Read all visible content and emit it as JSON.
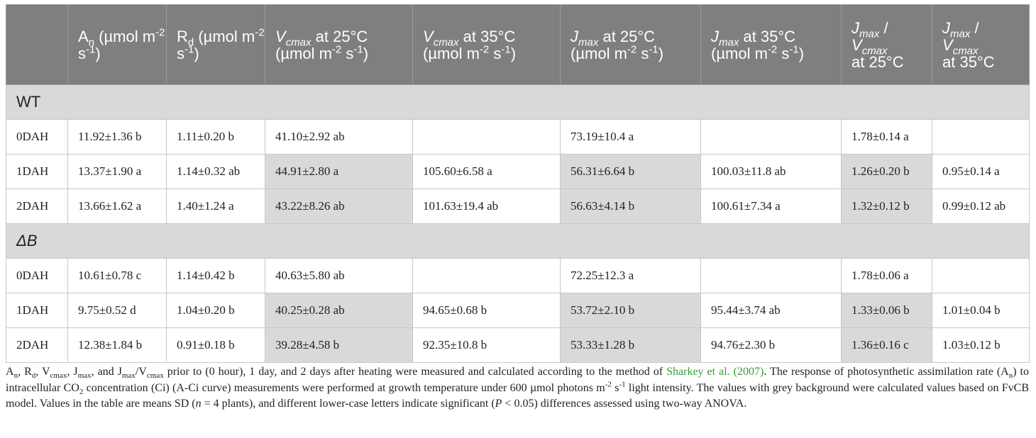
{
  "table": {
    "headers": [
      {
        "key": "group",
        "pre": "",
        "sub": "",
        "mid": "",
        "sup1": "",
        "mid2": "",
        "sup2": ""
      },
      {
        "key": "an",
        "pre": "A",
        "sub": "n",
        "mid": " (µmol m",
        "sup1": "-2",
        "mid2": " s",
        "sup2": "-1",
        "post": ")"
      },
      {
        "key": "rd",
        "pre": "R",
        "sub": "d",
        "mid": " (µmol m",
        "sup1": "-2",
        "mid2": " s",
        "sup2": "-1",
        "post": ")"
      },
      {
        "key": "vcmax25"
      },
      {
        "key": "vcmax35"
      },
      {
        "key": "jmax25"
      },
      {
        "key": "jmax35"
      },
      {
        "key": "ratio25"
      },
      {
        "key": "ratio35"
      }
    ],
    "header_text": {
      "an_a": "A",
      "an_sub": "n",
      "an_rest": " (µmol m",
      "an_sup1": "-2",
      "an_s": " s",
      "an_sup2": "-1",
      "an_close": ")",
      "rd_a": "R",
      "rd_sub": "d",
      "rd_rest": " (µmol m",
      "rd_sup1": "-2",
      "rd_s": " s",
      "rd_sup2": "-1",
      "rd_close": ")",
      "v25_v": "V",
      "v25_sub": "cmax",
      "v25_at": " at 25°C",
      "v25_unit": "(µmol m",
      "v25_sup1": "-2",
      "v25_s": " s",
      "v25_sup2": "-1",
      "v25_close": ")",
      "v35_v": "V",
      "v35_sub": "cmax",
      "v35_at": " at 35°C",
      "v35_unit": "(µmol m",
      "v35_sup1": "-2",
      "v35_s": " s",
      "v35_sup2": "-1",
      "v35_close": ")",
      "j25_j": "J",
      "j25_sub": "max",
      "j25_at": " at 25°C",
      "j25_unit": "(µmol m",
      "j25_sup1": "-2",
      "j25_s": " s",
      "j25_sup2": "-1",
      "j25_close": ")",
      "j35_j": "J",
      "j35_sub": "max",
      "j35_at": " at 35°C",
      "j35_unit": "(µmol m",
      "j35_sup1": "-2",
      "j35_s": " s",
      "j35_sup2": "-1",
      "j35_close": ")",
      "r25_j": "J",
      "r25_jsub": "max",
      "r25_slash": " /",
      "r25_v": "V",
      "r25_vsub": "cmax",
      "r25_at": "at 25°C",
      "r35_j": "J",
      "r35_jsub": "max",
      "r35_slash": " /",
      "r35_v": "V",
      "r35_vsub": "cmax",
      "r35_at": "at 35°C"
    },
    "groups": [
      {
        "label": "WT",
        "rows": [
          {
            "label": "0DAH",
            "an": "11.92±1.36 b",
            "rd": "1.11±0.20 b",
            "vcmax25": "41.10±2.92 ab",
            "vcmax35": "",
            "jmax25": "73.19±10.4 a",
            "jmax35": "",
            "ratio25": "1.78±0.14 a",
            "ratio35": "",
            "grey": false
          },
          {
            "label": "1DAH",
            "an": "13.37±1.90 a",
            "rd": "1.14±0.32 ab",
            "vcmax25": "44.91±2.80 a",
            "vcmax35": "105.60±6.58 a",
            "jmax25": "56.31±6.64 b",
            "jmax35": "100.03±11.8 ab",
            "ratio25": "1.26±0.20 b",
            "ratio35": "0.95±0.14 a",
            "grey": true
          },
          {
            "label": "2DAH",
            "an": "13.66±1.62 a",
            "rd": "1.40±1.24 a",
            "vcmax25": "43.22±8.26 ab",
            "vcmax35": "101.63±19.4 ab",
            "jmax25": "56.63±4.14 b",
            "jmax35": "100.61±7.34 a",
            "ratio25": "1.32±0.12 b",
            "ratio35": "0.99±0.12 ab",
            "grey": true
          }
        ]
      },
      {
        "label": "ΔB",
        "rows": [
          {
            "label": "0DAH",
            "an": "10.61±0.78 c",
            "rd": "1.14±0.42 b",
            "vcmax25": "40.63±5.80 ab",
            "vcmax35": "",
            "jmax25": "72.25±12.3 a",
            "jmax35": "",
            "ratio25": "1.78±0.06 a",
            "ratio35": "",
            "grey": false
          },
          {
            "label": "1DAH",
            "an": "9.75±0.52 d",
            "rd": "1.04±0.20 b",
            "vcmax25": "40.25±0.28 ab",
            "vcmax35": "94.65±0.68 b",
            "jmax25": "53.72±2.10 b",
            "jmax35": "95.44±3.74 ab",
            "ratio25": "1.33±0.06 b",
            "ratio35": "1.01±0.04 b",
            "grey": true
          },
          {
            "label": "2DAH",
            "an": "12.38±1.84 b",
            "rd": "0.91±0.18 b",
            "vcmax25": "39.28±4.58 b",
            "vcmax35": "92.35±10.8 b",
            "jmax25": "53.33±1.28 b",
            "jmax35": "94.76±2.30 b",
            "ratio25": "1.36±0.16 c",
            "ratio35": "1.03±0.12 b",
            "grey": true
          }
        ]
      }
    ]
  },
  "caption": {
    "p1_a": "A",
    "p1_a_sub": "n",
    "p1_sep1": ", R",
    "p1_r_sub": "d",
    "p1_sep2": ", V",
    "p1_v_sub": "cmax",
    "p1_sep3": ", J",
    "p1_j_sub": "max",
    "p1_sep4": ", and J",
    "p1_j2_sub": "max",
    "p1_slash": "/V",
    "p1_v2_sub": "cmax",
    "p1_text": " prior to (0 hour), 1 day, and 2 days after heating were measured and calculated according to the method of ",
    "citation": "Sharkey et al. (2007)",
    "p2_text": ". The response of photosynthetic assimilation rate (A",
    "p2_a_sub": "n",
    "p2_text2": ") to intracellular CO",
    "p2_co_sub": "2",
    "p2_text3": " concentration (Ci) (A-Ci curve) measurements were performed at growth temperature under 600 µmol photons m",
    "p2_sup1": "-2",
    "p2_s": " s",
    "p2_sup2": "-1",
    "p2_text4": " light intensity. The values with grey background were calculated values based on FvCB model. Values in the table are means SD (",
    "p2_n": "n",
    "p2_text5": " = 4 plants), and different lower-case letters indicate significant (",
    "p2_p": "P",
    "p2_text6": " < 0.05) differences assessed using two-way ANOVA."
  }
}
